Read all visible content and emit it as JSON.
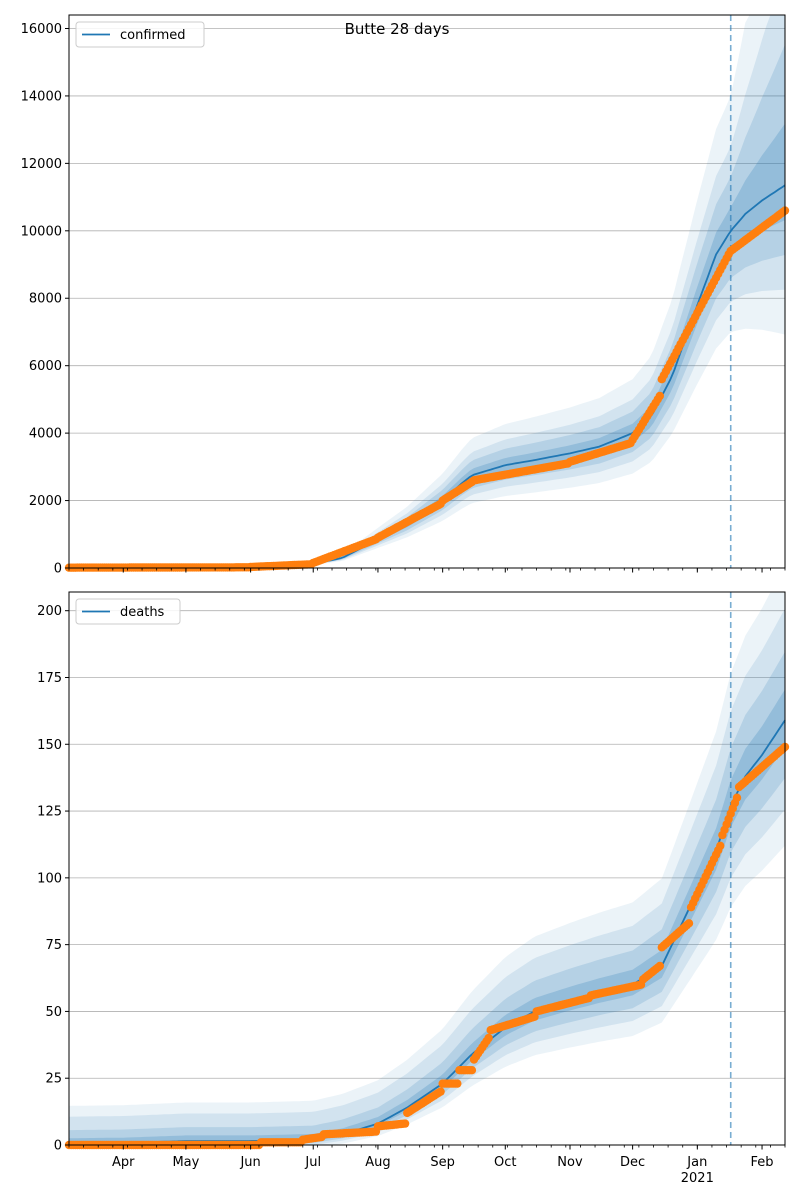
{
  "figure": {
    "title": "Butte 28 days"
  },
  "chart_data": [
    {
      "type": "line",
      "legend": {
        "label": "confirmed",
        "placement": "top-left"
      },
      "grid": "horizontal",
      "ylim": [
        0,
        16400
      ],
      "y_ticks": [
        0,
        2000,
        4000,
        6000,
        8000,
        10000,
        12000,
        14000,
        16000
      ],
      "x_range": [
        "2020-03-06",
        "2021-02-12"
      ],
      "x_tick_labels": [],
      "forecast_start": "2021-01-17",
      "model_x": [
        "2020-03-06",
        "2020-04-01",
        "2020-05-01",
        "2020-06-01",
        "2020-06-20",
        "2020-07-01",
        "2020-07-15",
        "2020-08-01",
        "2020-08-15",
        "2020-09-01",
        "2020-09-10",
        "2020-09-15",
        "2020-10-01",
        "2020-10-15",
        "2020-11-01",
        "2020-11-15",
        "2020-12-01",
        "2020-12-10",
        "2020-12-20",
        "2021-01-01",
        "2021-01-10",
        "2021-01-17",
        "2021-01-24",
        "2021-02-01",
        "2021-02-12"
      ],
      "model_y": [
        10,
        15,
        20,
        30,
        60,
        120,
        300,
        850,
        1300,
        2000,
        2500,
        2750,
        3050,
        3200,
        3400,
        3600,
        4000,
        4500,
        5700,
        7800,
        9300,
        10000,
        10500,
        10900,
        11350
      ],
      "band_offsets": [
        [
          0.07,
          0.07
        ],
        [
          0.14,
          0.16
        ],
        [
          0.21,
          0.25
        ],
        [
          0.3,
          0.4
        ]
      ],
      "band_opacity": [
        0.22,
        0.16,
        0.12,
        0.09
      ],
      "observed": [
        {
          "start": "2020-03-06",
          "end": "2020-05-31",
          "y0": 10,
          "y1": 20
        },
        {
          "start": "2020-06-01",
          "end": "2020-06-30",
          "y0": 30,
          "y1": 110
        },
        {
          "start": "2020-07-01",
          "end": "2020-07-31",
          "y0": 150,
          "y1": 850
        },
        {
          "start": "2020-08-01",
          "end": "2020-08-31",
          "y0": 900,
          "y1": 1900
        },
        {
          "start": "2020-09-01",
          "end": "2020-09-15",
          "y0": 2000,
          "y1": 2550
        },
        {
          "start": "2020-09-16",
          "end": "2020-10-31",
          "y0": 2600,
          "y1": 3100
        },
        {
          "start": "2020-11-01",
          "end": "2020-11-30",
          "y0": 3150,
          "y1": 3700
        },
        {
          "start": "2020-12-01",
          "end": "2020-12-14",
          "y0": 3800,
          "y1": 5100
        },
        {
          "start": "2020-12-15",
          "end": "2021-01-16",
          "y0": 5600,
          "y1": 9300
        },
        {
          "start": "2021-01-17",
          "end": "2021-02-12",
          "y0": 9400,
          "y1": 10600
        }
      ]
    },
    {
      "type": "line",
      "legend": {
        "label": "deaths",
        "placement": "top-left"
      },
      "grid": "horizontal",
      "ylim": [
        0,
        207
      ],
      "y_ticks": [
        0,
        25,
        50,
        75,
        100,
        125,
        150,
        175,
        200
      ],
      "x_range": [
        "2020-03-06",
        "2021-02-12"
      ],
      "x_tick_labels": [
        {
          "date": "2020-04-01",
          "label": "Apr"
        },
        {
          "date": "2020-05-01",
          "label": "May"
        },
        {
          "date": "2020-06-01",
          "label": "Jun"
        },
        {
          "date": "2020-07-01",
          "label": "Jul"
        },
        {
          "date": "2020-08-01",
          "label": "Aug"
        },
        {
          "date": "2020-09-01",
          "label": "Sep"
        },
        {
          "date": "2020-10-01",
          "label": "Oct"
        },
        {
          "date": "2020-11-01",
          "label": "Nov"
        },
        {
          "date": "2020-12-01",
          "label": "Dec"
        },
        {
          "date": "2021-01-01",
          "label": "Jan\n2021"
        },
        {
          "date": "2021-02-01",
          "label": "Feb"
        }
      ],
      "forecast_start": "2021-01-17",
      "model_x": [
        "2020-03-06",
        "2020-04-01",
        "2020-05-01",
        "2020-06-01",
        "2020-07-01",
        "2020-07-15",
        "2020-08-01",
        "2020-08-15",
        "2020-09-01",
        "2020-09-15",
        "2020-10-01",
        "2020-10-15",
        "2020-11-01",
        "2020-11-15",
        "2020-12-01",
        "2020-12-15",
        "2021-01-01",
        "2021-01-10",
        "2021-01-17",
        "2021-01-24",
        "2021-02-01",
        "2021-02-12"
      ],
      "model_y": [
        0.5,
        0.7,
        1.5,
        1.5,
        2,
        4,
        8,
        14,
        23,
        34,
        44,
        50,
        54,
        57,
        60,
        67,
        95,
        110,
        127,
        138,
        146,
        159
      ],
      "band_offsets": [
        [
          2,
          2
        ],
        [
          5,
          5
        ],
        [
          8,
          10
        ],
        [
          12,
          14
        ]
      ],
      "band_scale": [
        0.06,
        0.13,
        0.2,
        0.28
      ],
      "band_opacity": [
        0.22,
        0.16,
        0.12,
        0.09
      ],
      "observed": [
        {
          "start": "2020-03-06",
          "end": "2020-06-05",
          "y0": 0,
          "y1": 0
        },
        {
          "start": "2020-06-06",
          "end": "2020-06-25",
          "y0": 1,
          "y1": 1
        },
        {
          "start": "2020-06-26",
          "end": "2020-07-05",
          "y0": 2,
          "y1": 3
        },
        {
          "start": "2020-07-06",
          "end": "2020-07-31",
          "y0": 4,
          "y1": 5
        },
        {
          "start": "2020-08-01",
          "end": "2020-08-14",
          "y0": 7,
          "y1": 8
        },
        {
          "start": "2020-08-15",
          "end": "2020-08-31",
          "y0": 12,
          "y1": 20
        },
        {
          "start": "2020-09-01",
          "end": "2020-09-08",
          "y0": 23,
          "y1": 23
        },
        {
          "start": "2020-09-09",
          "end": "2020-09-15",
          "y0": 28,
          "y1": 28
        },
        {
          "start": "2020-09-16",
          "end": "2020-09-23",
          "y0": 32,
          "y1": 40
        },
        {
          "start": "2020-09-24",
          "end": "2020-10-15",
          "y0": 43,
          "y1": 48
        },
        {
          "start": "2020-10-16",
          "end": "2020-11-10",
          "y0": 50,
          "y1": 55
        },
        {
          "start": "2020-11-11",
          "end": "2020-12-05",
          "y0": 56,
          "y1": 60
        },
        {
          "start": "2020-12-06",
          "end": "2020-12-14",
          "y0": 62,
          "y1": 67
        },
        {
          "start": "2020-12-15",
          "end": "2020-12-28",
          "y0": 74,
          "y1": 83
        },
        {
          "start": "2020-12-29",
          "end": "2021-01-12",
          "y0": 89,
          "y1": 112
        },
        {
          "start": "2021-01-13",
          "end": "2021-01-20",
          "y0": 116,
          "y1": 130
        },
        {
          "start": "2021-01-21",
          "end": "2021-02-12",
          "y0": 134,
          "y1": 149
        }
      ]
    }
  ]
}
